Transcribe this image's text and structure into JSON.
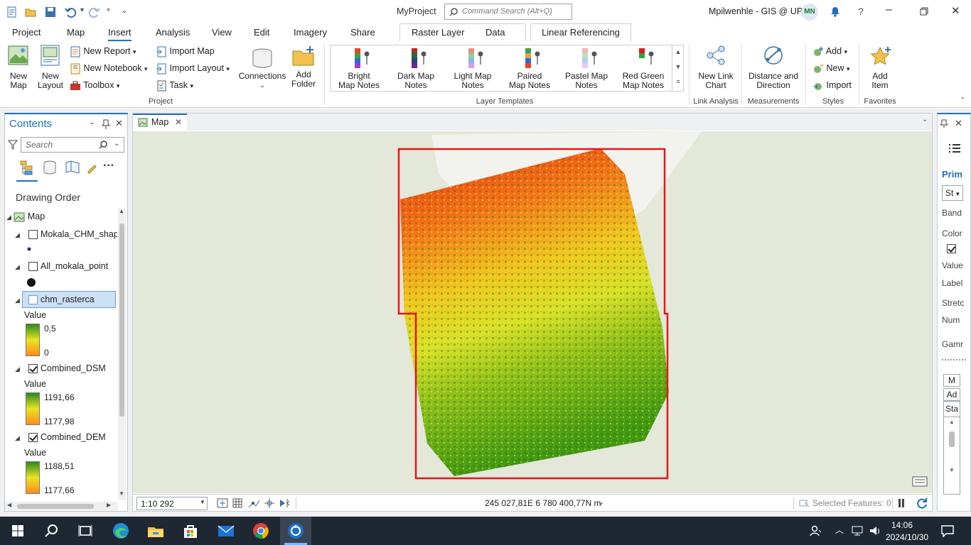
{
  "window": {
    "project_name": "MyProject",
    "command_search_placeholder": "Command Search (Alt+Q)",
    "user": "Mpilwenhle - GIS @ UP",
    "user_initials": "MN"
  },
  "tabs": [
    {
      "label": "Project"
    },
    {
      "label": "Map"
    },
    {
      "label": "Insert"
    },
    {
      "label": "Analysis"
    },
    {
      "label": "View"
    },
    {
      "label": "Edit"
    },
    {
      "label": "Imagery"
    },
    {
      "label": "Share"
    }
  ],
  "context_tabs": [
    {
      "label": "Raster Layer"
    },
    {
      "label": "Data"
    },
    {
      "label": "Linear Referencing"
    }
  ],
  "ribbon": {
    "project_group": {
      "label": "Project",
      "new_map": "New Map",
      "new_layout": "New Layout",
      "new_report": "New Report",
      "new_notebook": "New Notebook",
      "toolbox": "Toolbox",
      "import_map": "Import Map",
      "import_layout": "Import Layout",
      "task": "Task",
      "connections": "Connections",
      "add_folder": "Add Folder"
    },
    "layer_templates": {
      "label": "Layer Templates",
      "items": [
        {
          "line1": "Bright",
          "line2": "Map Notes"
        },
        {
          "line1": "Dark Map",
          "line2": "Notes"
        },
        {
          "line1": "Light Map",
          "line2": "Notes"
        },
        {
          "line1": "Paired",
          "line2": "Map Notes"
        },
        {
          "line1": "Pastel Map",
          "line2": "Notes"
        },
        {
          "line1": "Red Green",
          "line2": "Map Notes"
        }
      ]
    },
    "link_analysis": {
      "label": "Link Analysis",
      "new_link_chart": "New Link Chart"
    },
    "measurements": {
      "label": "Measurements",
      "distance_direction": "Distance and Direction"
    },
    "styles": {
      "label": "Styles",
      "add": "Add",
      "new": "New",
      "import": "Import"
    },
    "favorites": {
      "label": "Favorites",
      "add_item": "Add Item"
    }
  },
  "contents": {
    "title": "Contents",
    "search_placeholder": "Search",
    "drawing_order": "Drawing Order",
    "map_label": "Map",
    "layers": [
      {
        "name": "Mokala_CHM_shapefile",
        "checked": false
      },
      {
        "name": "All_mokala_point",
        "checked": false
      },
      {
        "name": "chm_rasterca",
        "checked": false,
        "legend_title": "Value",
        "high": "0,5",
        "low": "0"
      },
      {
        "name": "Combined_DSM",
        "checked": true,
        "legend_title": "Value",
        "high": "1191,66",
        "low": "1177,98"
      },
      {
        "name": "Combined_DEM",
        "checked": true,
        "legend_title": "Value",
        "high": "1188,51",
        "low": "1177,66"
      }
    ]
  },
  "map_view": {
    "tab_label": "Map",
    "scale": "1:10 292",
    "coordinates": "245 027,81E 6 780 400,77N m",
    "selected_features": "Selected Features: 0"
  },
  "right_pane": {
    "title": "Prim",
    "dropdown": "St",
    "labels": [
      "Band",
      "Color",
      "Value",
      "Label",
      "Stretc",
      "Num",
      "Gamr"
    ],
    "buttons": [
      "M",
      "Ad",
      "Sta"
    ]
  },
  "taskbar": {
    "time": "14:06",
    "date": "2024/10/30"
  },
  "colors": {
    "accent": "#1f6fbf",
    "extent_border": "#e8141b",
    "map_bg": "#e4e8d8"
  }
}
